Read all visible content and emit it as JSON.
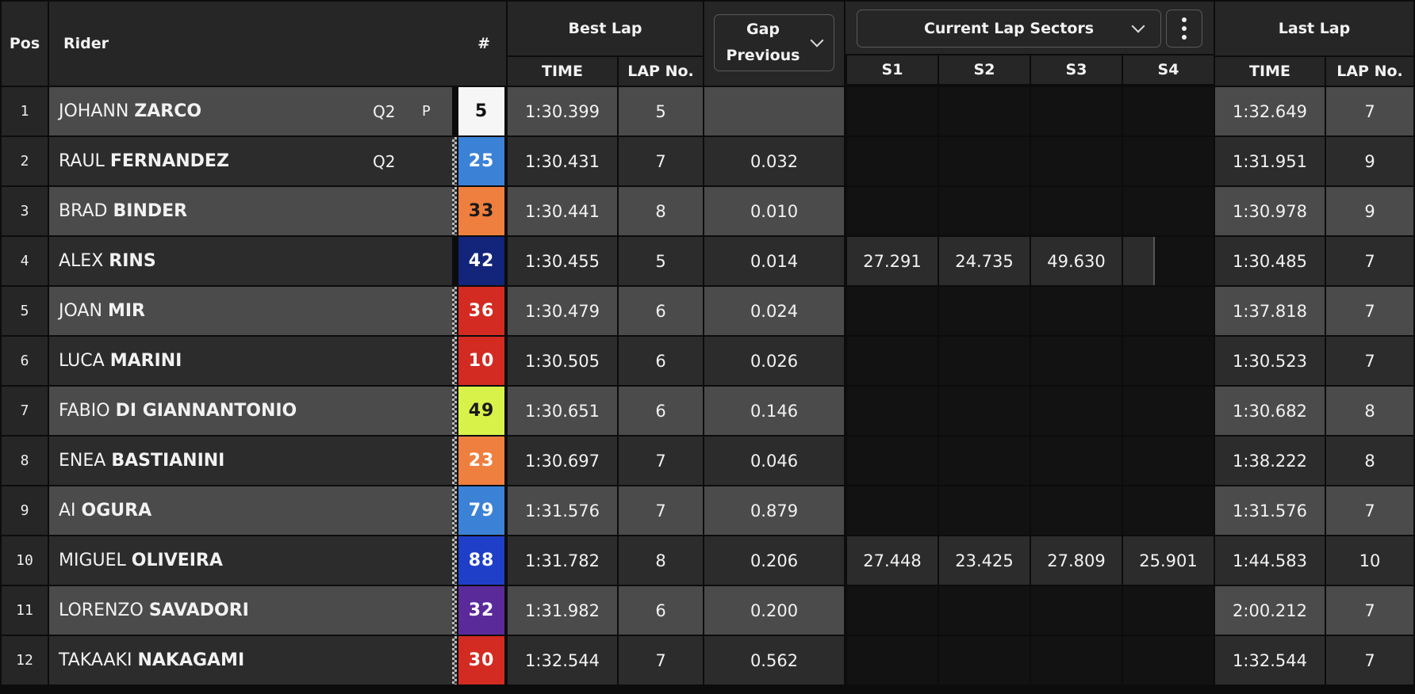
{
  "header": {
    "pos": "Pos",
    "rider": "Rider",
    "number": "#",
    "best_lap": "Best Lap",
    "gap_line1": "Gap",
    "gap_line2": "Previous",
    "sectors_select": "Current Lap Sectors",
    "last_lap": "Last Lap",
    "time": "TIME",
    "lap_no": "LAP No.",
    "s1": "S1",
    "s2": "S2",
    "s3": "S3",
    "s4": "S4"
  },
  "icons": {
    "gap_dropdown": "chevron-down-icon",
    "sectors_dropdown": "chevron-down-icon",
    "more": "more-vertical-icon",
    "pit_flag": "checkered-flag-icon"
  },
  "colors": {
    "row_light": "#4b4b4b",
    "row_dark": "#2c2c2c",
    "sector_dark": "#121212",
    "sector_filled": "#2c2c2c"
  },
  "rows": [
    {
      "pos": "1",
      "first": "JOHANN",
      "last": "ZARCO",
      "q": "Q2",
      "extra": "P",
      "num": "5",
      "num_bg": "#f6f6f6",
      "num_fg": "#111111",
      "best": "1:30.399",
      "best_lap": "5",
      "gap": "",
      "s1": "",
      "s2": "",
      "s3": "",
      "s4": "",
      "last_time": "1:32.649",
      "last_lap": "7"
    },
    {
      "pos": "2",
      "first": "RAUL",
      "last": "FERNANDEZ",
      "q": "Q2",
      "extra": "",
      "num": "25",
      "num_bg": "#3b82d6",
      "num_fg": "#ffffff",
      "best": "1:30.431",
      "best_lap": "7",
      "gap": "0.032",
      "s1": "",
      "s2": "",
      "s3": "",
      "s4": "",
      "last_time": "1:31.951",
      "last_lap": "9"
    },
    {
      "pos": "3",
      "first": "BRAD",
      "last": "BINDER",
      "q": "",
      "extra": "",
      "num": "33",
      "num_bg": "#ee7f3e",
      "num_fg": "#1a1a1a",
      "best": "1:30.441",
      "best_lap": "8",
      "gap": "0.010",
      "s1": "",
      "s2": "",
      "s3": "",
      "s4": "",
      "last_time": "1:30.978",
      "last_lap": "9"
    },
    {
      "pos": "4",
      "first": "ALEX",
      "last": "RINS",
      "q": "",
      "extra": "",
      "num": "42",
      "num_bg": "#12257a",
      "num_fg": "#ffffff",
      "best": "1:30.455",
      "best_lap": "5",
      "gap": "0.014",
      "s1": "27.291",
      "s2": "24.735",
      "s3": "49.630",
      "s4": "",
      "last_time": "1:30.485",
      "last_lap": "7"
    },
    {
      "pos": "5",
      "first": "JOAN",
      "last": "MIR",
      "q": "",
      "extra": "",
      "num": "36",
      "num_bg": "#d32b22",
      "num_fg": "#ffffff",
      "best": "1:30.479",
      "best_lap": "6",
      "gap": "0.024",
      "s1": "",
      "s2": "",
      "s3": "",
      "s4": "",
      "last_time": "1:37.818",
      "last_lap": "7"
    },
    {
      "pos": "6",
      "first": "LUCA",
      "last": "MARINI",
      "q": "",
      "extra": "",
      "num": "10",
      "num_bg": "#d32b22",
      "num_fg": "#ffffff",
      "best": "1:30.505",
      "best_lap": "6",
      "gap": "0.026",
      "s1": "",
      "s2": "",
      "s3": "",
      "s4": "",
      "last_time": "1:30.523",
      "last_lap": "7"
    },
    {
      "pos": "7",
      "first": "FABIO",
      "last": "DI GIANNANTONIO",
      "q": "",
      "extra": "",
      "num": "49",
      "num_bg": "#d9f24a",
      "num_fg": "#1a1a1a",
      "best": "1:30.651",
      "best_lap": "6",
      "gap": "0.146",
      "s1": "",
      "s2": "",
      "s3": "",
      "s4": "",
      "last_time": "1:30.682",
      "last_lap": "8"
    },
    {
      "pos": "8",
      "first": "ENEA",
      "last": "BASTIANINI",
      "q": "",
      "extra": "",
      "num": "23",
      "num_bg": "#ee7f3e",
      "num_fg": "#ffffff",
      "best": "1:30.697",
      "best_lap": "7",
      "gap": "0.046",
      "s1": "",
      "s2": "",
      "s3": "",
      "s4": "",
      "last_time": "1:38.222",
      "last_lap": "8"
    },
    {
      "pos": "9",
      "first": "AI",
      "last": "OGURA",
      "q": "",
      "extra": "",
      "num": "79",
      "num_bg": "#3b82d6",
      "num_fg": "#ffffff",
      "best": "1:31.576",
      "best_lap": "7",
      "gap": "0.879",
      "s1": "",
      "s2": "",
      "s3": "",
      "s4": "",
      "last_time": "1:31.576",
      "last_lap": "7"
    },
    {
      "pos": "10",
      "first": "MIGUEL",
      "last": "OLIVEIRA",
      "q": "",
      "extra": "",
      "num": "88",
      "num_bg": "#1f3fc9",
      "num_fg": "#ffffff",
      "best": "1:31.782",
      "best_lap": "8",
      "gap": "0.206",
      "s1": "27.448",
      "s2": "23.425",
      "s3": "27.809",
      "s4": "25.901",
      "last_time": "1:44.583",
      "last_lap": "10"
    },
    {
      "pos": "11",
      "first": "LORENZO",
      "last": "SAVADORI",
      "q": "",
      "extra": "",
      "num": "32",
      "num_bg": "#5b2a9a",
      "num_fg": "#ffffff",
      "best": "1:31.982",
      "best_lap": "6",
      "gap": "0.200",
      "s1": "",
      "s2": "",
      "s3": "",
      "s4": "",
      "last_time": "2:00.212",
      "last_lap": "7"
    },
    {
      "pos": "12",
      "first": "TAKAAKI",
      "last": "NAKAGAMI",
      "q": "",
      "extra": "",
      "num": "30",
      "num_bg": "#d32b22",
      "num_fg": "#ffffff",
      "best": "1:32.544",
      "best_lap": "7",
      "gap": "0.562",
      "s1": "",
      "s2": "",
      "s3": "",
      "s4": "",
      "last_time": "1:32.544",
      "last_lap": "7"
    }
  ],
  "pit_flag_rows": [
    2,
    3,
    5,
    6,
    7,
    8,
    9,
    10,
    11,
    12
  ]
}
